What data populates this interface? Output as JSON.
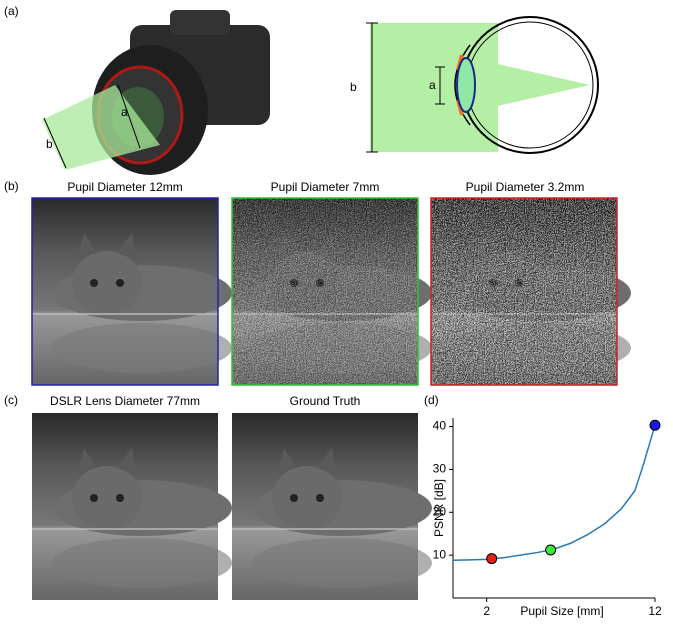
{
  "figure": {
    "panels": [
      "(a)",
      "(b)",
      "(c)",
      "(d)"
    ],
    "camera_labels": [
      "a",
      "b"
    ],
    "eye_labels": [
      "a",
      "b"
    ],
    "b_titles": [
      "Pupil Diameter 12mm",
      "Pupil Diameter 7mm",
      "Pupil Diameter 3.2mm"
    ],
    "c_titles": [
      "DSLR Lens Diameter 77mm",
      "Ground Truth"
    ]
  },
  "chart_data": {
    "type": "line",
    "x_label": "Pupil Size [mm]",
    "y_label": "PSNR [dB]",
    "x": [
      0,
      1,
      2,
      3,
      4,
      5,
      6,
      7,
      8,
      9,
      10,
      10.8,
      11.3,
      12
    ],
    "values": [
      8.8,
      8.9,
      9.0,
      9.4,
      10.0,
      10.6,
      11.4,
      12.8,
      14.8,
      17.3,
      20.8,
      25.0,
      31.0,
      40.3
    ],
    "color": "#2a7ab8",
    "markers": [
      {
        "x": 2.3,
        "value": 9.2,
        "color": "#e8201a"
      },
      {
        "x": 5.8,
        "value": 11.2,
        "color": "#3be83b"
      },
      {
        "x": 12,
        "value": 40.3,
        "color": "#1a1ae8"
      }
    ],
    "xlim": [
      0,
      12
    ],
    "ylim": [
      0,
      42
    ],
    "xticks": [
      2,
      12
    ],
    "yticks": [
      10,
      20,
      30,
      40
    ]
  }
}
